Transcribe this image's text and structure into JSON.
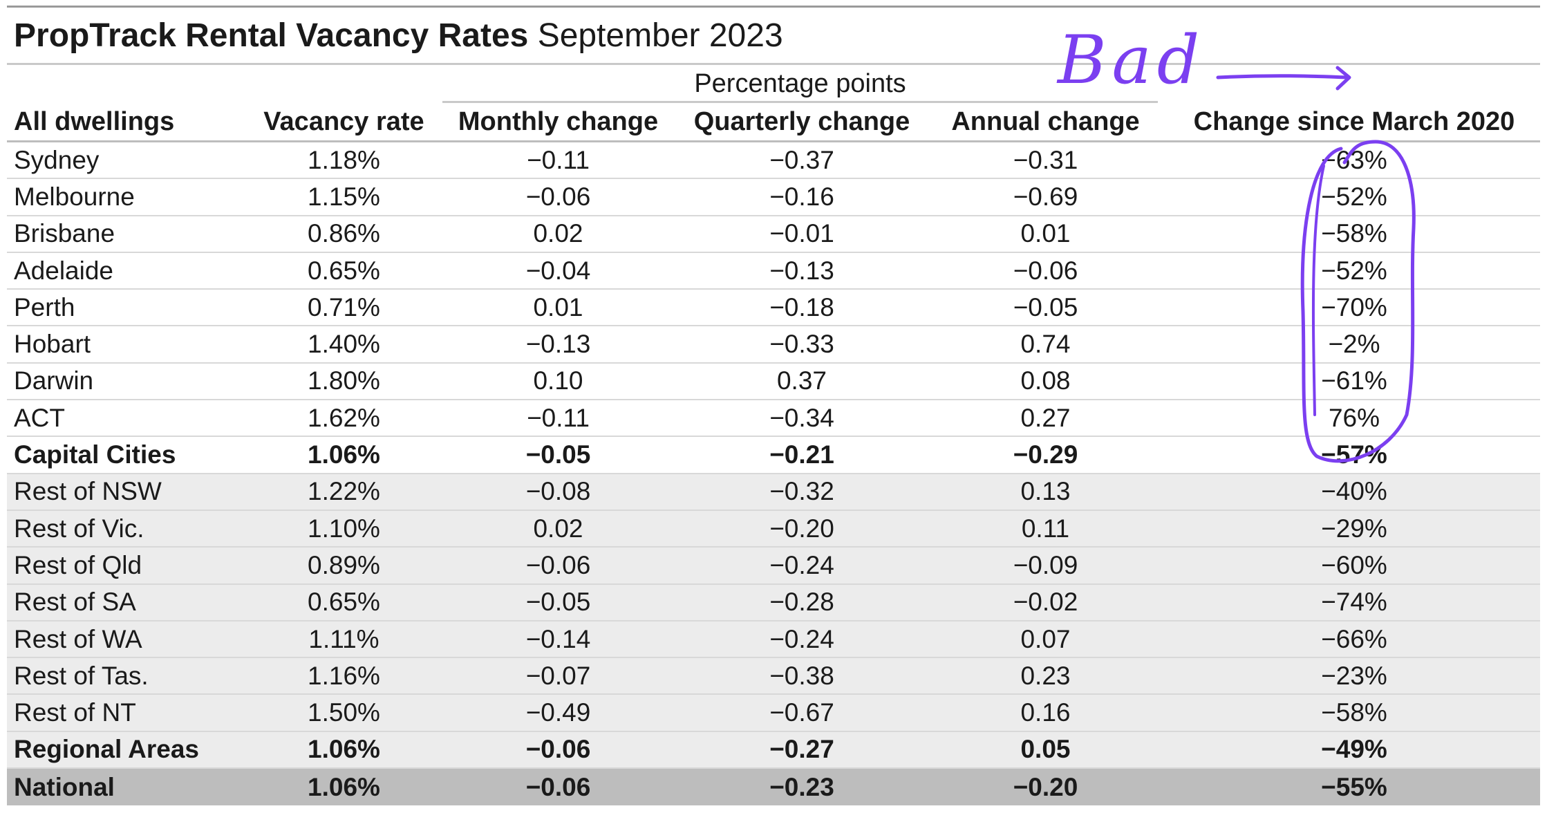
{
  "title": {
    "bold": "PropTrack Rental Vacancy Rates",
    "light": "September 2023"
  },
  "group_header": "Percentage points",
  "columns": [
    "All dwellings",
    "Vacancy rate",
    "Monthly change",
    "Quarterly change",
    "Annual change",
    "Change since March 2020"
  ],
  "rows": [
    {
      "name": "Sydney",
      "rate": "1.18%",
      "monthly": "−0.11",
      "quarterly": "−0.37",
      "annual": "−0.31",
      "since2020": "−63%"
    },
    {
      "name": "Melbourne",
      "rate": "1.15%",
      "monthly": "−0.06",
      "quarterly": "−0.16",
      "annual": "−0.69",
      "since2020": "−52%"
    },
    {
      "name": "Brisbane",
      "rate": "0.86%",
      "monthly": "0.02",
      "quarterly": "−0.01",
      "annual": "0.01",
      "since2020": "−58%"
    },
    {
      "name": "Adelaide",
      "rate": "0.65%",
      "monthly": "−0.04",
      "quarterly": "−0.13",
      "annual": "−0.06",
      "since2020": "−52%"
    },
    {
      "name": "Perth",
      "rate": "0.71%",
      "monthly": "0.01",
      "quarterly": "−0.18",
      "annual": "−0.05",
      "since2020": "−70%"
    },
    {
      "name": "Hobart",
      "rate": "1.40%",
      "monthly": "−0.13",
      "quarterly": "−0.33",
      "annual": "0.74",
      "since2020": "−2%"
    },
    {
      "name": "Darwin",
      "rate": "1.80%",
      "monthly": "0.10",
      "quarterly": "0.37",
      "annual": "0.08",
      "since2020": "−61%"
    },
    {
      "name": "ACT",
      "rate": "1.62%",
      "monthly": "−0.11",
      "quarterly": "−0.34",
      "annual": "0.27",
      "since2020": "76%"
    },
    {
      "name": "Capital Cities",
      "rate": "1.06%",
      "monthly": "−0.05",
      "quarterly": "−0.21",
      "annual": "−0.29",
      "since2020": "−57%"
    },
    {
      "name": "Rest of NSW",
      "rate": "1.22%",
      "monthly": "−0.08",
      "quarterly": "−0.32",
      "annual": "0.13",
      "since2020": "−40%"
    },
    {
      "name": "Rest of Vic.",
      "rate": "1.10%",
      "monthly": "0.02",
      "quarterly": "−0.20",
      "annual": "0.11",
      "since2020": "−29%"
    },
    {
      "name": "Rest of Qld",
      "rate": "0.89%",
      "monthly": "−0.06",
      "quarterly": "−0.24",
      "annual": "−0.09",
      "since2020": "−60%"
    },
    {
      "name": "Rest of SA",
      "rate": "0.65%",
      "monthly": "−0.05",
      "quarterly": "−0.28",
      "annual": "−0.02",
      "since2020": "−74%"
    },
    {
      "name": "Rest of WA",
      "rate": "1.11%",
      "monthly": "−0.14",
      "quarterly": "−0.24",
      "annual": "0.07",
      "since2020": "−66%"
    },
    {
      "name": "Rest of Tas.",
      "rate": "1.16%",
      "monthly": "−0.07",
      "quarterly": "−0.38",
      "annual": "0.23",
      "since2020": "−23%"
    },
    {
      "name": "Rest of NT",
      "rate": "1.50%",
      "monthly": "−0.49",
      "quarterly": "−0.67",
      "annual": "0.16",
      "since2020": "−58%"
    },
    {
      "name": "Regional Areas",
      "rate": "1.06%",
      "monthly": "−0.06",
      "quarterly": "−0.27",
      "annual": "0.05",
      "since2020": "−49%"
    },
    {
      "name": "National",
      "rate": "1.06%",
      "monthly": "−0.06",
      "quarterly": "−0.23",
      "annual": "−0.20",
      "since2020": "−55%"
    }
  ],
  "annotation": {
    "text": "Bad",
    "color": "#7b3ff0"
  }
}
